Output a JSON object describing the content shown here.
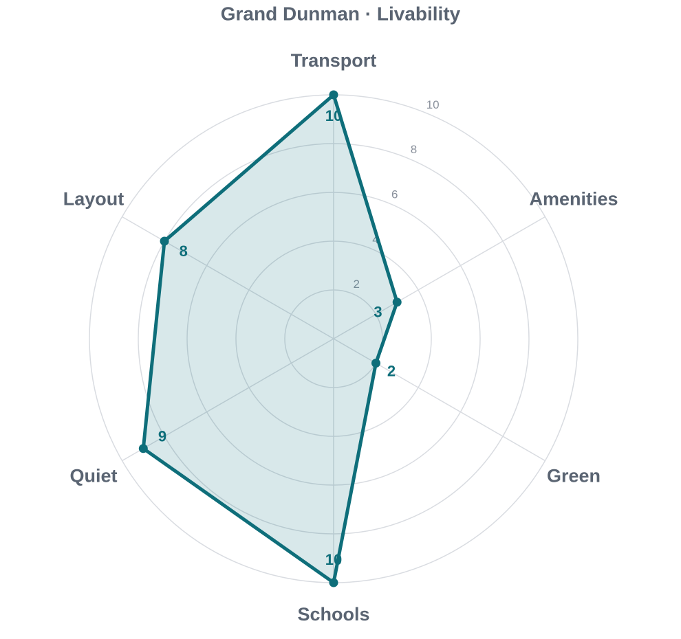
{
  "chart_data": {
    "type": "radar",
    "title": "Grand Dunman · Livability",
    "categories": [
      "Transport",
      "Amenities",
      "Green",
      "Schools",
      "Quiet",
      "Layout"
    ],
    "series": [
      {
        "name": "Grand Dunman",
        "color": "#0e6e7a",
        "values": [
          10,
          3,
          2,
          10,
          9,
          8
        ]
      }
    ],
    "rlim": [
      0,
      10
    ],
    "rticks": [
      2,
      4,
      6,
      8,
      10
    ],
    "grid": true
  }
}
